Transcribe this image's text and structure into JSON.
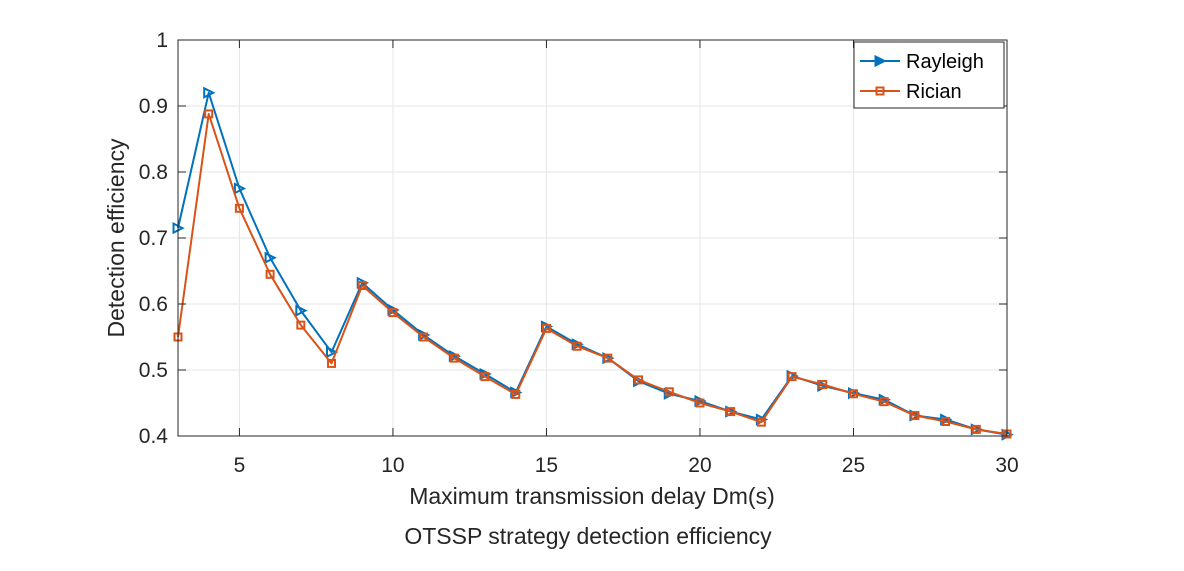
{
  "figure": {
    "caption": "OTSSP strategy detection efficiency"
  },
  "chart_data": {
    "type": "line",
    "title": "",
    "xlabel": "Maximum transmission delay Dm(s)",
    "ylabel": "Detection efficiency",
    "xlim": [
      3,
      30
    ],
    "ylim": [
      0.4,
      1.0
    ],
    "xticks": [
      5,
      10,
      15,
      20,
      25,
      30
    ],
    "yticks": [
      0.4,
      0.5,
      0.6,
      0.7,
      0.8,
      0.9,
      1.0
    ],
    "ytick_labels": [
      "0.4",
      "0.5",
      "0.6",
      "0.7",
      "0.8",
      "0.9",
      "1"
    ],
    "grid": true,
    "legend_position": "top-right",
    "x": [
      3,
      4,
      5,
      6,
      7,
      8,
      9,
      10,
      11,
      12,
      13,
      14,
      15,
      16,
      17,
      18,
      19,
      20,
      21,
      22,
      23,
      24,
      25,
      26,
      27,
      28,
      29,
      30
    ],
    "series": [
      {
        "name": "Rayleigh",
        "color": "#0072BD",
        "marker": "triangle-right",
        "values": [
          0.715,
          0.92,
          0.775,
          0.67,
          0.59,
          0.527,
          0.632,
          0.591,
          0.553,
          0.521,
          0.494,
          0.466,
          0.566,
          0.539,
          0.518,
          0.483,
          0.464,
          0.453,
          0.437,
          0.425,
          0.491,
          0.476,
          0.465,
          0.455,
          0.431,
          0.425,
          0.41,
          0.402
        ]
      },
      {
        "name": "Rician",
        "color": "#D95319",
        "marker": "square",
        "values": [
          0.55,
          0.888,
          0.745,
          0.645,
          0.568,
          0.51,
          0.628,
          0.587,
          0.55,
          0.518,
          0.49,
          0.463,
          0.563,
          0.536,
          0.518,
          0.485,
          0.467,
          0.45,
          0.437,
          0.421,
          0.49,
          0.478,
          0.464,
          0.452,
          0.431,
          0.422,
          0.41,
          0.403
        ]
      }
    ]
  }
}
